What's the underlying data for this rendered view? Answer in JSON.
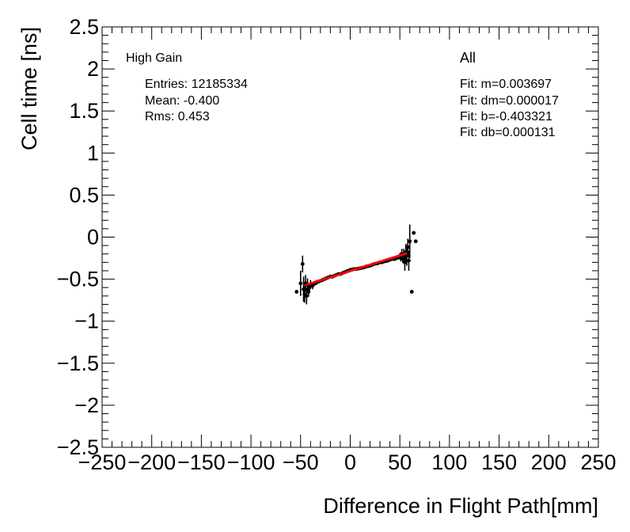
{
  "chart_data": {
    "type": "scatter",
    "title": "",
    "xlabel": "Difference in Flight Path[mm]",
    "ylabel": "Cell time [ns]",
    "xlim": [
      -250,
      250
    ],
    "ylim": [
      -2.5,
      2.5
    ],
    "xticks": [
      -250,
      -200,
      -150,
      -100,
      -50,
      0,
      50,
      100,
      150,
      200,
      250
    ],
    "xtick_labels": [
      "−250",
      "−200",
      "−150",
      "−100",
      "−50",
      "0",
      "50",
      "100",
      "150",
      "200",
      "250"
    ],
    "yticks": [
      -2.5,
      -2,
      -1.5,
      -1,
      -0.5,
      0,
      0.5,
      1,
      1.5,
      2,
      2.5
    ],
    "ytick_labels": [
      "−2.5",
      "−2",
      "−1.5",
      "−1",
      "−0.5",
      "0",
      "0.5",
      "1",
      "1.5",
      "2",
      "2.5"
    ],
    "grid": false,
    "series": [
      {
        "points": [
          {
            "x": -54,
            "y": -0.65,
            "err": 0.0
          },
          {
            "x": -50,
            "y": -0.55,
            "err": 0.15
          },
          {
            "x": -48,
            "y": -0.32,
            "err": 0.1
          },
          {
            "x": -47,
            "y": -0.62,
            "err": 0.15
          },
          {
            "x": -46,
            "y": -0.68,
            "err": 0.1
          },
          {
            "x": -45,
            "y": -0.55,
            "err": 0.1
          },
          {
            "x": -44,
            "y": -0.7,
            "err": 0.1
          },
          {
            "x": -43,
            "y": -0.57,
            "err": 0.08
          },
          {
            "x": -42,
            "y": -0.65,
            "err": 0.06
          },
          {
            "x": -41,
            "y": -0.6,
            "err": 0.05
          },
          {
            "x": -40,
            "y": -0.56,
            "err": 0.05
          },
          {
            "x": -38,
            "y": -0.58,
            "err": 0.04
          },
          {
            "x": -36,
            "y": -0.55,
            "err": 0.03
          },
          {
            "x": -34,
            "y": -0.54,
            "err": 0.03
          },
          {
            "x": -32,
            "y": -0.53,
            "err": 0.02
          },
          {
            "x": -30,
            "y": -0.52,
            "err": 0.02
          },
          {
            "x": -28,
            "y": -0.51,
            "err": 0.02
          },
          {
            "x": -26,
            "y": -0.5,
            "err": 0.015
          },
          {
            "x": -24,
            "y": -0.49,
            "err": 0.01
          },
          {
            "x": -22,
            "y": -0.48,
            "err": 0.01
          },
          {
            "x": -20,
            "y": -0.47,
            "err": 0.01
          },
          {
            "x": -18,
            "y": -0.47,
            "err": 0.01
          },
          {
            "x": -16,
            "y": -0.46,
            "err": 0.01
          },
          {
            "x": -14,
            "y": -0.45,
            "err": 0.008
          },
          {
            "x": -12,
            "y": -0.44,
            "err": 0.008
          },
          {
            "x": -10,
            "y": -0.44,
            "err": 0.008
          },
          {
            "x": -8,
            "y": -0.43,
            "err": 0.006
          },
          {
            "x": -6,
            "y": -0.42,
            "err": 0.006
          },
          {
            "x": -4,
            "y": -0.41,
            "err": 0.005
          },
          {
            "x": -2,
            "y": -0.4,
            "err": 0.005
          },
          {
            "x": 0,
            "y": -0.39,
            "err": 0.005
          },
          {
            "x": 2,
            "y": -0.385,
            "err": 0.005
          },
          {
            "x": 4,
            "y": -0.38,
            "err": 0.005
          },
          {
            "x": 6,
            "y": -0.38,
            "err": 0.005
          },
          {
            "x": 8,
            "y": -0.375,
            "err": 0.006
          },
          {
            "x": 10,
            "y": -0.37,
            "err": 0.006
          },
          {
            "x": 12,
            "y": -0.365,
            "err": 0.008
          },
          {
            "x": 14,
            "y": -0.36,
            "err": 0.008
          },
          {
            "x": 16,
            "y": -0.35,
            "err": 0.008
          },
          {
            "x": 18,
            "y": -0.345,
            "err": 0.01
          },
          {
            "x": 20,
            "y": -0.34,
            "err": 0.01
          },
          {
            "x": 22,
            "y": -0.33,
            "err": 0.01
          },
          {
            "x": 24,
            "y": -0.32,
            "err": 0.01
          },
          {
            "x": 26,
            "y": -0.315,
            "err": 0.01
          },
          {
            "x": 28,
            "y": -0.31,
            "err": 0.012
          },
          {
            "x": 30,
            "y": -0.3,
            "err": 0.012
          },
          {
            "x": 32,
            "y": -0.3,
            "err": 0.015
          },
          {
            "x": 34,
            "y": -0.29,
            "err": 0.015
          },
          {
            "x": 36,
            "y": -0.285,
            "err": 0.015
          },
          {
            "x": 38,
            "y": -0.28,
            "err": 0.02
          },
          {
            "x": 40,
            "y": -0.27,
            "err": 0.02
          },
          {
            "x": 42,
            "y": -0.26,
            "err": 0.02
          },
          {
            "x": 44,
            "y": -0.26,
            "err": 0.025
          },
          {
            "x": 46,
            "y": -0.25,
            "err": 0.03
          },
          {
            "x": 48,
            "y": -0.24,
            "err": 0.03
          },
          {
            "x": 50,
            "y": -0.23,
            "err": 0.04
          },
          {
            "x": 51,
            "y": -0.24,
            "err": 0.05
          },
          {
            "x": 52,
            "y": -0.2,
            "err": 0.06
          },
          {
            "x": 53,
            "y": -0.26,
            "err": 0.05
          },
          {
            "x": 54,
            "y": -0.22,
            "err": 0.08
          },
          {
            "x": 55,
            "y": -0.3,
            "err": 0.1
          },
          {
            "x": 56,
            "y": -0.18,
            "err": 0.1
          },
          {
            "x": 57,
            "y": -0.22,
            "err": 0.12
          },
          {
            "x": 58,
            "y": -0.12,
            "err": 0.1
          },
          {
            "x": 59,
            "y": -0.28,
            "err": 0.12
          },
          {
            "x": 60,
            "y": -0.05,
            "err": 0.2
          },
          {
            "x": 62,
            "y": -0.65,
            "err": 0.0
          },
          {
            "x": 64,
            "y": 0.05,
            "err": 0.0
          },
          {
            "x": 66,
            "y": -0.05,
            "err": 0.0
          }
        ]
      }
    ],
    "fit": {
      "m": 0.003697,
      "b": -0.403321,
      "x_range": [
        -45,
        57
      ],
      "color": "#ff0000"
    }
  },
  "annotations": {
    "gain_label": "High Gain",
    "entries": "Entries: 12185334",
    "mean": "Mean: -0.400",
    "rms": "Rms: 0.453",
    "all_label": "All",
    "fit_m": "Fit: m=0.003697",
    "fit_dm": "Fit: dm=0.000017",
    "fit_b": "Fit: b=-0.403321",
    "fit_db": "Fit: db=0.000131"
  }
}
